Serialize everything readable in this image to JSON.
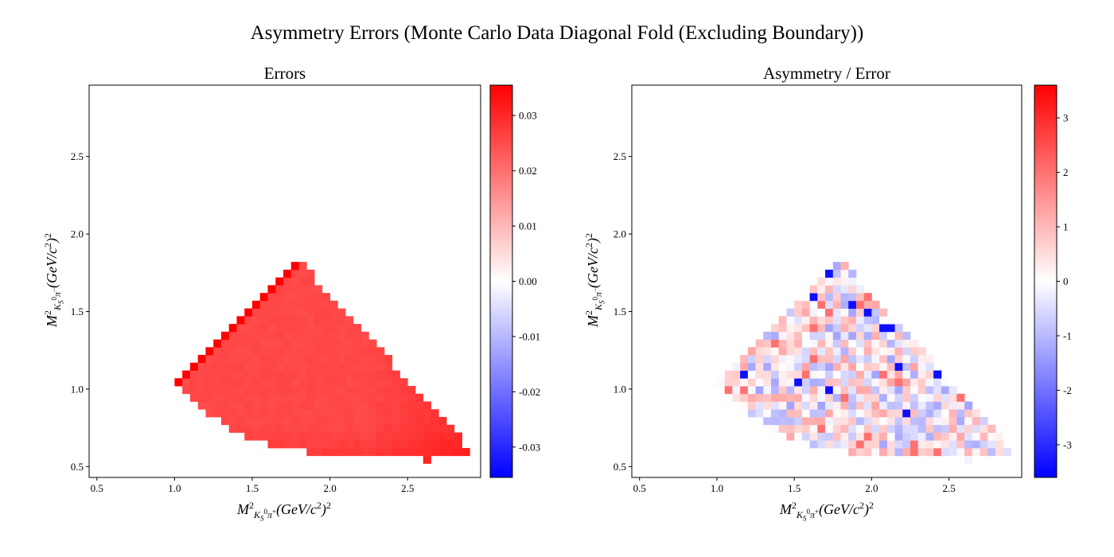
{
  "figure": {
    "suptitle": "Asymmetry Errors (Monte Carlo Data Diagonal Fold (Excluding Boundary))"
  },
  "chart_data": [
    {
      "type": "heatmap",
      "title": "Errors",
      "xlabel": "M²_{K_S⁰π⁺} (GeV/c²)²",
      "ylabel": "M²_{K_S⁰π⁻} (GeV/c²)²",
      "xlabel_parts": {
        "main": "M",
        "sup": "2",
        "sub": "Kₛ⁰π⁺",
        "rest": "(GeV/c",
        "rest2": ")",
        "unit_sup": "2"
      },
      "ylabel_parts": {
        "main": "M",
        "sup": "2",
        "sub": "Kₛ⁰π⁻",
        "rest": "(GeV/c",
        "rest2": ")",
        "unit_sup": "2"
      },
      "xlim": [
        0.45,
        2.97
      ],
      "ylim": [
        0.43,
        2.96
      ],
      "xticks": [
        "0.5",
        "1.0",
        "1.5",
        "2.0",
        "2.5"
      ],
      "yticks": [
        "0.5",
        "1.0",
        "1.5",
        "2.0",
        "2.5"
      ],
      "bin_width": 0.05,
      "cells": "Error values per bin over the Dalitz region; ~0.026 in the interior rising to ~0.036 on the upper-left edge and ~0.031 near the lower-right corner",
      "region": {
        "min_x_per_row_start_y": 0.52,
        "rows": [
          {
            "y": [
              0.53,
              0.58
            ],
            "x": [
              2.62,
              2.67
            ]
          },
          {
            "y": [
              0.58,
              0.63
            ],
            "x": [
              1.83,
              2.88
            ]
          },
          {
            "y": [
              0.63,
              0.68
            ],
            "x": [
              1.63,
              2.88
            ]
          },
          {
            "y": [
              0.68,
              0.73
            ],
            "x": [
              1.43,
              2.83
            ]
          },
          {
            "y": [
              0.73,
              0.78
            ],
            "x": [
              1.28,
              2.83
            ]
          },
          {
            "y": [
              0.78,
              0.83
            ],
            "x": [
              1.18,
              2.78
            ]
          },
          {
            "y": [
              0.83,
              0.88
            ],
            "x": [
              1.08,
              2.73
            ]
          },
          {
            "y": [
              0.88,
              0.93
            ],
            "x": [
              1.03,
              2.68
            ]
          },
          {
            "y": [
              0.93,
              0.98
            ],
            "x": [
              1.0,
              2.63
            ]
          },
          {
            "y": [
              0.98,
              1.03
            ],
            "x": [
              1.0,
              2.58
            ]
          }
        ]
      },
      "color_min": -0.0355,
      "color_max": 0.0355,
      "colorbar_ticks": [
        "0.03",
        "0.02",
        "0.01",
        "0.00",
        "-0.01",
        "-0.02",
        "-0.03"
      ],
      "colorbar_tick_values": [
        0.03,
        0.02,
        0.01,
        0.0,
        -0.01,
        -0.02,
        -0.03
      ],
      "colormap": "bwr",
      "colors": {
        "low": "#0000ff",
        "mid": "#ffffff",
        "high": "#ff0000"
      }
    },
    {
      "type": "heatmap",
      "title": "Asymmetry / Error",
      "xlabel": "M²_{K_S⁰π⁺} (GeV/c²)²",
      "ylabel": "M²_{K_S⁰π⁻} (GeV/c²)²",
      "xlim": [
        0.45,
        2.97
      ],
      "ylim": [
        0.43,
        2.96
      ],
      "xticks": [
        "0.5",
        "1.0",
        "1.5",
        "2.0",
        "2.5"
      ],
      "yticks": [
        "0.5",
        "1.0",
        "1.5",
        "2.0",
        "2.5"
      ],
      "bin_width": 0.05,
      "cells": "Pull values per bin, mostly between -1 and +1, scattered from about -3.5 to +2",
      "color_min": -3.6,
      "color_max": 3.6,
      "colorbar_ticks": [
        "3",
        "2",
        "1",
        "0",
        "-1",
        "-2",
        "-3"
      ],
      "colorbar_tick_values": [
        3,
        2,
        1,
        0,
        -1,
        -2,
        -3
      ],
      "colormap": "bwr",
      "colors": {
        "low": "#0000ff",
        "mid": "#ffffff",
        "high": "#ff0000"
      }
    }
  ]
}
